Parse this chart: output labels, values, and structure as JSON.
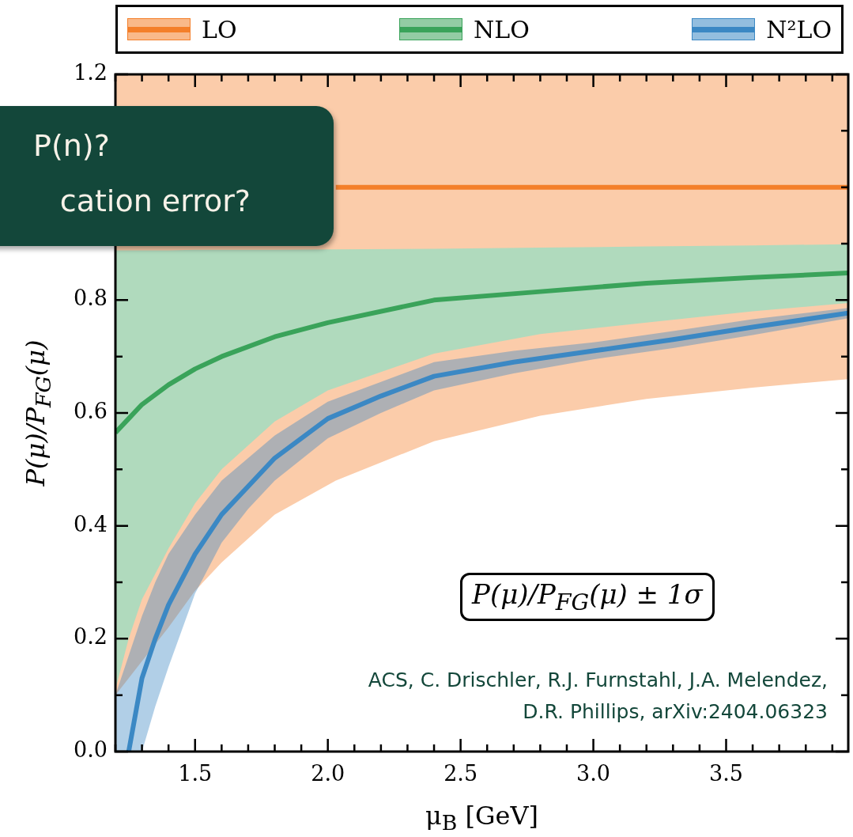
{
  "chart_data": {
    "type": "line",
    "xlabel": "μ$_{B}$ [GeV]",
    "ylabel": "P(μ)/P$_{FG}$(μ)",
    "xlim": [
      1.2,
      3.96
    ],
    "xticks": [
      {
        "value": 1.2,
        "label": null
      },
      {
        "value": 1.3,
        "label": null
      },
      {
        "value": 1.4,
        "label": null
      },
      {
        "value": 1.5,
        "label": "1.5"
      },
      {
        "value": 1.6,
        "label": null
      },
      {
        "value": 1.7,
        "label": null
      },
      {
        "value": 1.8,
        "label": null
      },
      {
        "value": 1.9,
        "label": null
      },
      {
        "value": 2.0,
        "label": "2.0"
      },
      {
        "value": 2.1,
        "label": null
      },
      {
        "value": 2.2,
        "label": null
      },
      {
        "value": 2.3,
        "label": null
      },
      {
        "value": 2.4,
        "label": null
      },
      {
        "value": 2.5,
        "label": "2.5"
      },
      {
        "value": 2.6,
        "label": null
      },
      {
        "value": 2.7,
        "label": null
      },
      {
        "value": 2.8,
        "label": null
      },
      {
        "value": 2.9,
        "label": null
      },
      {
        "value": 3.0,
        "label": "3.0"
      },
      {
        "value": 3.1,
        "label": null
      },
      {
        "value": 3.2,
        "label": null
      },
      {
        "value": 3.3,
        "label": null
      },
      {
        "value": 3.4,
        "label": null
      },
      {
        "value": 3.5,
        "label": "3.5"
      },
      {
        "value": 3.6,
        "label": null
      },
      {
        "value": 3.7,
        "label": null
      },
      {
        "value": 3.8,
        "label": null
      },
      {
        "value": 3.9,
        "label": null
      }
    ],
    "ylim": [
      0,
      1.2
    ],
    "yticks": [
      {
        "value": 0,
        "label": "0.0"
      },
      {
        "value": 0.1,
        "label": null
      },
      {
        "value": 0.2,
        "label": "0.2"
      },
      {
        "value": 0.3,
        "label": null
      },
      {
        "value": 0.4,
        "label": "0.4"
      },
      {
        "value": 0.5,
        "label": null
      },
      {
        "value": 0.6,
        "label": "0.6"
      },
      {
        "value": 0.7,
        "label": null
      },
      {
        "value": 0.8,
        "label": "0.8"
      },
      {
        "value": 0.9,
        "label": null
      },
      {
        "value": 1.0,
        "label": null
      },
      {
        "value": 1.1,
        "label": null
      },
      {
        "value": 1.2,
        "label": "1.2"
      }
    ],
    "legend": "top",
    "line_style": "solid",
    "marker": "none",
    "annotations": [
      "P(μ)/P$_{FG}$(μ) ± 1σ",
      "ACS, C. Drischler, R.J. Furnstahl, J.A. Melendez,",
      "D.R. Phillips, arXiv:2404.06323",
      "P(n)?",
      "cation error?"
    ],
    "series": [
      {
        "name": "LO",
        "color": "#f47f2a",
        "x": [
          1.2,
          1.3,
          1.4,
          1.5,
          1.6,
          1.8,
          2.03,
          2.4,
          2.8,
          3.2,
          3.6,
          3.96
        ],
        "values": [
          null,
          null,
          null,
          null,
          null,
          null,
          1.0,
          1.0,
          1.0,
          1.0,
          1.0,
          1.0
        ],
        "lower": [
          0.1,
          0.16,
          0.22,
          0.285,
          0.335,
          0.42,
          0.48,
          0.55,
          0.595,
          0.625,
          0.645,
          0.66
        ],
        "upper": [
          1.2,
          1.2,
          1.2,
          1.2,
          1.2,
          1.2,
          1.2,
          1.2,
          1.2,
          1.2,
          1.2,
          1.2
        ]
      },
      {
        "name": "NLO",
        "color": "#3aa35a",
        "x": [
          1.2,
          1.25,
          1.3,
          1.4,
          1.5,
          1.6,
          1.8,
          2.0,
          2.4,
          2.8,
          3.2,
          3.6,
          3.96
        ],
        "values": [
          0.565,
          0.59,
          0.615,
          0.65,
          0.678,
          0.7,
          0.735,
          0.76,
          0.8,
          0.815,
          0.83,
          0.84,
          0.848
        ],
        "lower": [
          0.11,
          0.2,
          0.27,
          0.36,
          0.44,
          0.5,
          0.585,
          0.64,
          0.705,
          0.74,
          0.76,
          0.78,
          0.795
        ],
        "upper": [
          0.888,
          0.888,
          0.888,
          0.888,
          0.889,
          0.889,
          0.889,
          0.89,
          0.891,
          0.893,
          0.895,
          0.897,
          0.899
        ]
      },
      {
        "name": "N²LO",
        "color": "#3b88c4",
        "x": [
          1.2,
          1.25,
          1.3,
          1.35,
          1.4,
          1.5,
          1.6,
          1.7,
          1.8,
          2.0,
          2.2,
          2.4,
          2.7,
          3.0,
          3.3,
          3.6,
          3.96
        ],
        "values": [
          null,
          0.0,
          0.13,
          0.2,
          0.26,
          0.35,
          0.42,
          0.47,
          0.52,
          0.59,
          0.63,
          0.665,
          0.69,
          0.71,
          0.73,
          0.752,
          0.777
        ],
        "lower": [
          0.0,
          0.0,
          0.0,
          0.08,
          0.15,
          0.28,
          0.37,
          0.43,
          0.48,
          0.555,
          0.6,
          0.64,
          0.67,
          0.695,
          0.715,
          0.738,
          0.768
        ],
        "upper": [
          0.1,
          0.17,
          0.24,
          0.3,
          0.35,
          0.42,
          0.48,
          0.52,
          0.56,
          0.62,
          0.655,
          0.69,
          0.71,
          0.725,
          0.745,
          0.766,
          0.786
        ]
      }
    ]
  }
}
